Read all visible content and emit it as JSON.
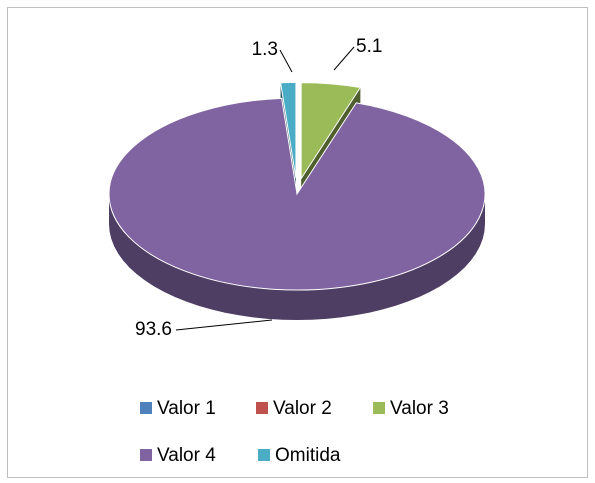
{
  "chart_data": {
    "type": "pie3d",
    "categories": [
      "Valor 1",
      "Valor 2",
      "Valor 3",
      "Valor 4",
      "Omitida"
    ],
    "values": [
      0,
      0,
      5.1,
      93.6,
      1.3
    ],
    "colors": [
      "#4F81BD",
      "#C0504D",
      "#9BBB59",
      "#8064A2",
      "#4BACC6"
    ],
    "legend": "bottom"
  }
}
